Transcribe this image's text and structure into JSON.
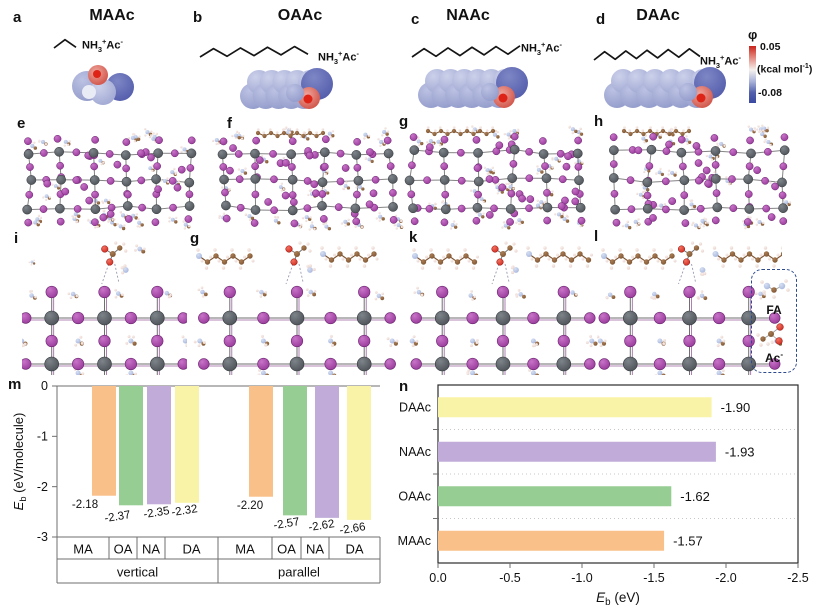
{
  "panel_letters": [
    "a",
    "b",
    "c",
    "d",
    "e",
    "f",
    "g",
    "h",
    "i",
    "g",
    "k",
    "l",
    "m",
    "n"
  ],
  "molecules": {
    "titles": [
      "MAAc",
      "OAAc",
      "NAAc",
      "DAAc"
    ],
    "amine_formula_parts": [
      {
        "t": "NH"
      },
      {
        "t": "3",
        "s": "sub"
      },
      {
        "t": "+",
        "s": "sup"
      },
      {
        "t": "Ac"
      },
      {
        "t": "-",
        "s": "sup"
      }
    ]
  },
  "colorbar": {
    "symbol": "φ",
    "max": "0.05",
    "unit_parts": [
      {
        "t": "(kcal mol"
      },
      {
        "t": "-1",
        "s": "sup"
      },
      {
        "t": ")"
      }
    ],
    "min": "-0.08",
    "top_color": "#c9241c",
    "bottom_color": "#3a49a0"
  },
  "legend": {
    "fa_label": "FA",
    "ac_label_parts": [
      {
        "t": "Ac"
      },
      {
        "t": "-",
        "s": "sup"
      }
    ]
  },
  "chart_data": [
    {
      "type": "bar",
      "panel": "m",
      "orientation": "vertical",
      "ylabel": "Eb (eV/molecule)",
      "ylabel_parts": [
        {
          "t": "E",
          "s": "i"
        },
        {
          "t": "b",
          "s": "sub"
        },
        {
          "t": " (eV/molecule)"
        }
      ],
      "ylim": [
        0,
        -3
      ],
      "yticks": [
        "0",
        "-1",
        "-2",
        "-3"
      ],
      "grid": false,
      "groups": [
        {
          "name": "vertical",
          "categories": [
            "MA",
            "OA",
            "NA",
            "DA"
          ],
          "values": [
            -2.18,
            -2.37,
            -2.35,
            -2.32
          ],
          "labels": [
            "-2.18",
            "-2.37",
            "-2.35",
            "-2.32"
          ]
        },
        {
          "name": "parallel",
          "categories": [
            "MA",
            "OA",
            "NA",
            "DA"
          ],
          "values": [
            -2.2,
            -2.57,
            -2.62,
            -2.66
          ],
          "labels": [
            "-2.20",
            "-2.57",
            "-2.62",
            "-2.66"
          ]
        }
      ],
      "bar_colors": [
        "#f9c08a",
        "#95cd92",
        "#c1abd8",
        "#f8f3a6"
      ]
    },
    {
      "type": "bar",
      "panel": "n",
      "orientation": "horizontal",
      "categories": [
        "DAAc",
        "NAAc",
        "OAAc",
        "MAAc"
      ],
      "values": [
        -1.9,
        -1.93,
        -1.62,
        -1.57
      ],
      "labels": [
        "-1.90",
        "-1.93",
        "-1.62",
        "-1.57"
      ],
      "bar_colors": [
        "#f8f3a6",
        "#c1abd8",
        "#95cd92",
        "#f9c08a"
      ],
      "xlim": [
        0,
        -2.5
      ],
      "xticks": [
        "0.0",
        "-0.5",
        "-1.0",
        "-1.5",
        "-2.0",
        "-2.5"
      ],
      "xlabel": "Eb (eV)",
      "xlabel_parts": [
        {
          "t": "E",
          "s": "i"
        },
        {
          "t": "b",
          "s": "sub"
        },
        {
          "t": " (eV)"
        }
      ],
      "grid": "dotted-horizontal"
    }
  ]
}
